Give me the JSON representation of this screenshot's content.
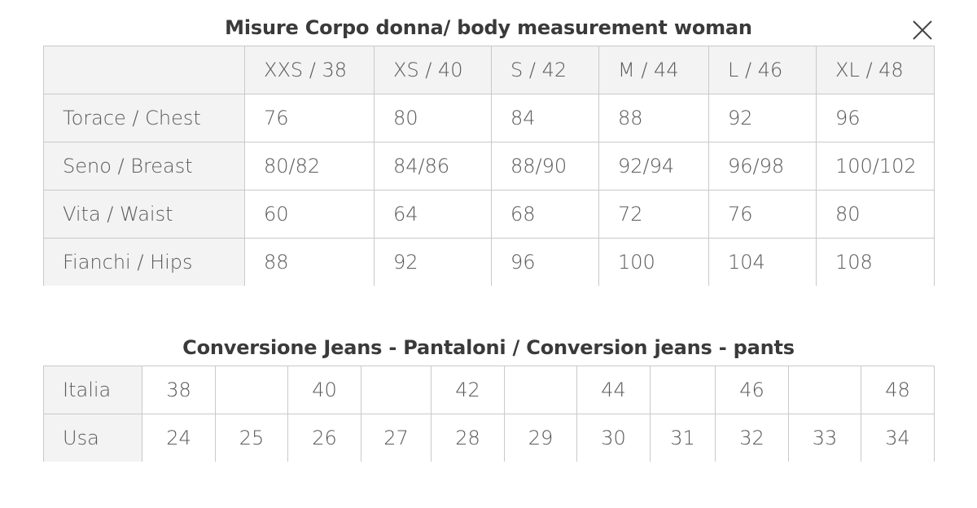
{
  "close_icon": "close-icon",
  "body_table": {
    "title": "Misure Corpo donna/ body measurement woman",
    "sizes": [
      "XXS / 38",
      "XS / 40",
      "S / 42",
      "M / 44",
      "L / 46",
      "XL / 48"
    ],
    "rows": [
      {
        "label": "Torace / Chest",
        "values": [
          "76",
          "80",
          "84",
          "88",
          "92",
          "96"
        ]
      },
      {
        "label": "Seno / Breast",
        "values": [
          "80/82",
          "84/86",
          "88/90",
          "92/94",
          "96/98",
          "100/102"
        ]
      },
      {
        "label": "Vita / Waist",
        "values": [
          "60",
          "64",
          "68",
          "72",
          "76",
          "80"
        ]
      },
      {
        "label": "Fianchi / Hips",
        "values": [
          "88",
          "92",
          "96",
          "100",
          "104",
          "108"
        ]
      }
    ]
  },
  "jeans_table": {
    "title": "Conversione Jeans - Pantaloni / Conversion jeans - pants",
    "rows": [
      {
        "label": "Italia",
        "values": [
          "38",
          "",
          "40",
          "",
          "42",
          "",
          "44",
          "",
          "46",
          "",
          "48"
        ]
      },
      {
        "label": "Usa",
        "values": [
          "24",
          "25",
          "26",
          "27",
          "28",
          "29",
          "30",
          "31",
          "32",
          "33",
          "34"
        ]
      }
    ]
  }
}
